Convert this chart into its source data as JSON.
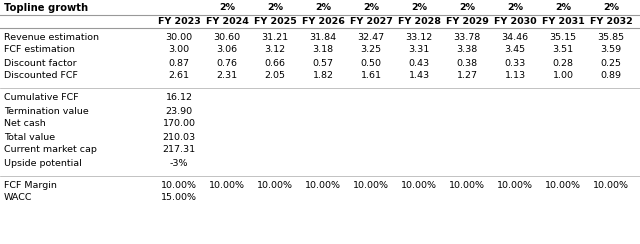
{
  "title": "Topline growth",
  "growth_pct": "2%",
  "years": [
    "FY 2023",
    "FY 2024",
    "FY 2025",
    "FY 2026",
    "FY 2027",
    "FY 2028",
    "FY 2029",
    "FY 2030",
    "FY 2031",
    "FY 2032"
  ],
  "revenue": [
    "30.00",
    "30.60",
    "31.21",
    "31.84",
    "32.47",
    "33.12",
    "33.78",
    "34.46",
    "35.15",
    "35.85"
  ],
  "fcf_estimation": [
    "3.00",
    "3.06",
    "3.12",
    "3.18",
    "3.25",
    "3.31",
    "3.38",
    "3.45",
    "3.51",
    "3.59"
  ],
  "discount_factor": [
    "0.87",
    "0.76",
    "0.66",
    "0.57",
    "0.50",
    "0.43",
    "0.38",
    "0.33",
    "0.28",
    "0.25"
  ],
  "discounted_fcf": [
    "2.61",
    "2.31",
    "2.05",
    "1.82",
    "1.61",
    "1.43",
    "1.27",
    "1.13",
    "1.00",
    "0.89"
  ],
  "cumulative_fcf": "16.12",
  "termination_value": "23.90",
  "net_cash": "170.00",
  "total_value": "210.03",
  "current_market_cap": "217.31",
  "upside_potential": "-3%",
  "fcf_margin": "10.00%",
  "wacc": "15.00%",
  "font_size": 6.8,
  "bold_font_size": 7.2
}
